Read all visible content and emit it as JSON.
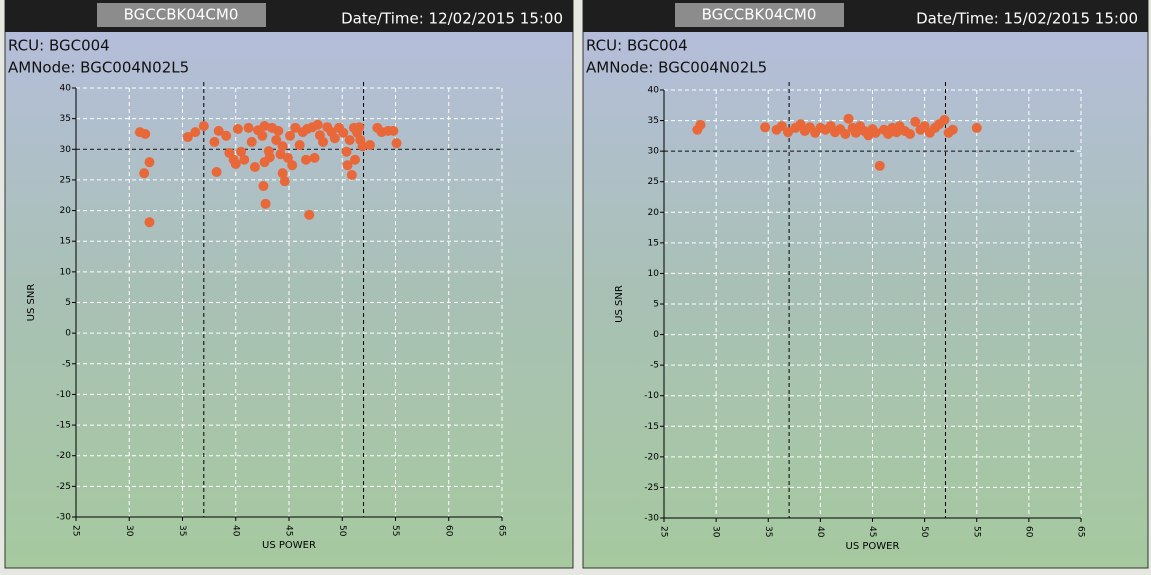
{
  "chart_data": [
    {
      "type": "scatter",
      "header_id": "BGCCBK04CM0",
      "datetime": "Date/Time: 12/02/2015 15:00",
      "rcu": "RCU: BGC004",
      "amnode": "AMNode: BGC004N02L5",
      "xlabel": "US POWER",
      "ylabel": "US SNR",
      "color": "#e8683a",
      "xlim": [
        25,
        65
      ],
      "ylim": [
        -30,
        40
      ],
      "xticks": [
        25,
        30,
        35,
        40,
        45,
        50,
        55,
        60,
        65
      ],
      "yticks": [
        -30,
        -25,
        -20,
        -15,
        -10,
        -5,
        0,
        5,
        10,
        15,
        20,
        25,
        30,
        35,
        40
      ],
      "grid": true,
      "reference_lines": {
        "x": [
          37,
          52
        ],
        "y": [
          30
        ]
      },
      "x": [
        31.0,
        31.5,
        31.4,
        31.9,
        31.9,
        35.5,
        36.2,
        37.0,
        38.0,
        38.4,
        38.2,
        39.1,
        39.4,
        39.8,
        40.2,
        40.5,
        40.8,
        40.0,
        41.2,
        41.5,
        41.8,
        42.1,
        42.5,
        42.7,
        42.7,
        43.2,
        43.1,
        42.6,
        42.8,
        43.4,
        43.8,
        44.0,
        44.2,
        44.4,
        44.4,
        44.6,
        44.9,
        45.1,
        45.3,
        45.6,
        46.0,
        46.3,
        46.6,
        46.9,
        46.7,
        47.2,
        47.4,
        47.7,
        47.9,
        48.2,
        48.6,
        49.0,
        49.3,
        49.7,
        50.1,
        50.4,
        50.7,
        50.5,
        50.9,
        51.1,
        51.4,
        51.6,
        51.7,
        51.2,
        51.9,
        52.6,
        53.3,
        53.7,
        54.3,
        54.8,
        55.1
      ],
      "y": [
        32.8,
        32.5,
        26.1,
        27.9,
        18.1,
        32.0,
        32.8,
        33.8,
        31.2,
        33.0,
        26.3,
        32.2,
        29.4,
        28.3,
        33.3,
        29.6,
        28.3,
        27.6,
        33.5,
        31.2,
        27.1,
        33.1,
        32.2,
        27.9,
        33.8,
        28.7,
        29.7,
        24.0,
        21.1,
        33.5,
        31.5,
        33.0,
        29.2,
        30.5,
        26.1,
        24.8,
        28.6,
        32.2,
        27.4,
        33.5,
        30.7,
        32.8,
        28.3,
        19.3,
        33.3,
        33.6,
        28.6,
        34.0,
        32.3,
        31.2,
        33.6,
        32.8,
        31.8,
        33.5,
        32.7,
        29.6,
        31.5,
        27.4,
        25.8,
        33.5,
        32.7,
        33.6,
        31.5,
        28.3,
        30.5,
        30.7,
        33.5,
        32.8,
        33.0,
        33.0,
        31.0
      ]
    },
    {
      "type": "scatter",
      "header_id": "BGCCBK04CM0",
      "datetime": "Date/Time: 15/02/2015 15:00",
      "rcu": "RCU: BGC004",
      "amnode": "AMNode: BGC004N02L5",
      "xlabel": "US POWER",
      "ylabel": "US SNR",
      "color": "#e8683a",
      "xlim": [
        25,
        65
      ],
      "ylim": [
        -30,
        40
      ],
      "xticks": [
        25,
        30,
        35,
        40,
        45,
        50,
        55,
        60,
        65
      ],
      "yticks": [
        -30,
        -25,
        -20,
        -15,
        -10,
        -5,
        0,
        5,
        10,
        15,
        20,
        25,
        30,
        35,
        40
      ],
      "grid": true,
      "reference_lines": {
        "x": [
          37,
          52
        ],
        "y": [
          30
        ]
      },
      "x": [
        28.2,
        28.5,
        34.7,
        35.8,
        36.3,
        36.9,
        37.6,
        38.1,
        38.5,
        39.0,
        39.5,
        40.0,
        40.5,
        41.0,
        41.4,
        41.9,
        42.4,
        42.7,
        43.1,
        43.4,
        43.8,
        44.2,
        44.6,
        45.0,
        45.3,
        45.7,
        46.1,
        46.5,
        46.9,
        47.3,
        47.6,
        48.1,
        48.6,
        49.1,
        49.6,
        50.0,
        50.5,
        51.0,
        51.4,
        51.9,
        52.3,
        52.7,
        55.0
      ],
      "y": [
        33.5,
        34.3,
        33.9,
        33.5,
        34.1,
        33.1,
        33.8,
        34.4,
        33.3,
        33.9,
        33.0,
        33.8,
        33.5,
        34.1,
        33.1,
        33.6,
        32.8,
        35.3,
        33.8,
        33.0,
        34.1,
        33.3,
        32.6,
        33.6,
        33.0,
        27.6,
        33.5,
        32.8,
        33.8,
        33.1,
        34.1,
        33.3,
        32.8,
        34.8,
        33.5,
        34.1,
        33.0,
        33.8,
        34.4,
        35.1,
        33.0,
        33.5,
        33.8
      ]
    }
  ]
}
